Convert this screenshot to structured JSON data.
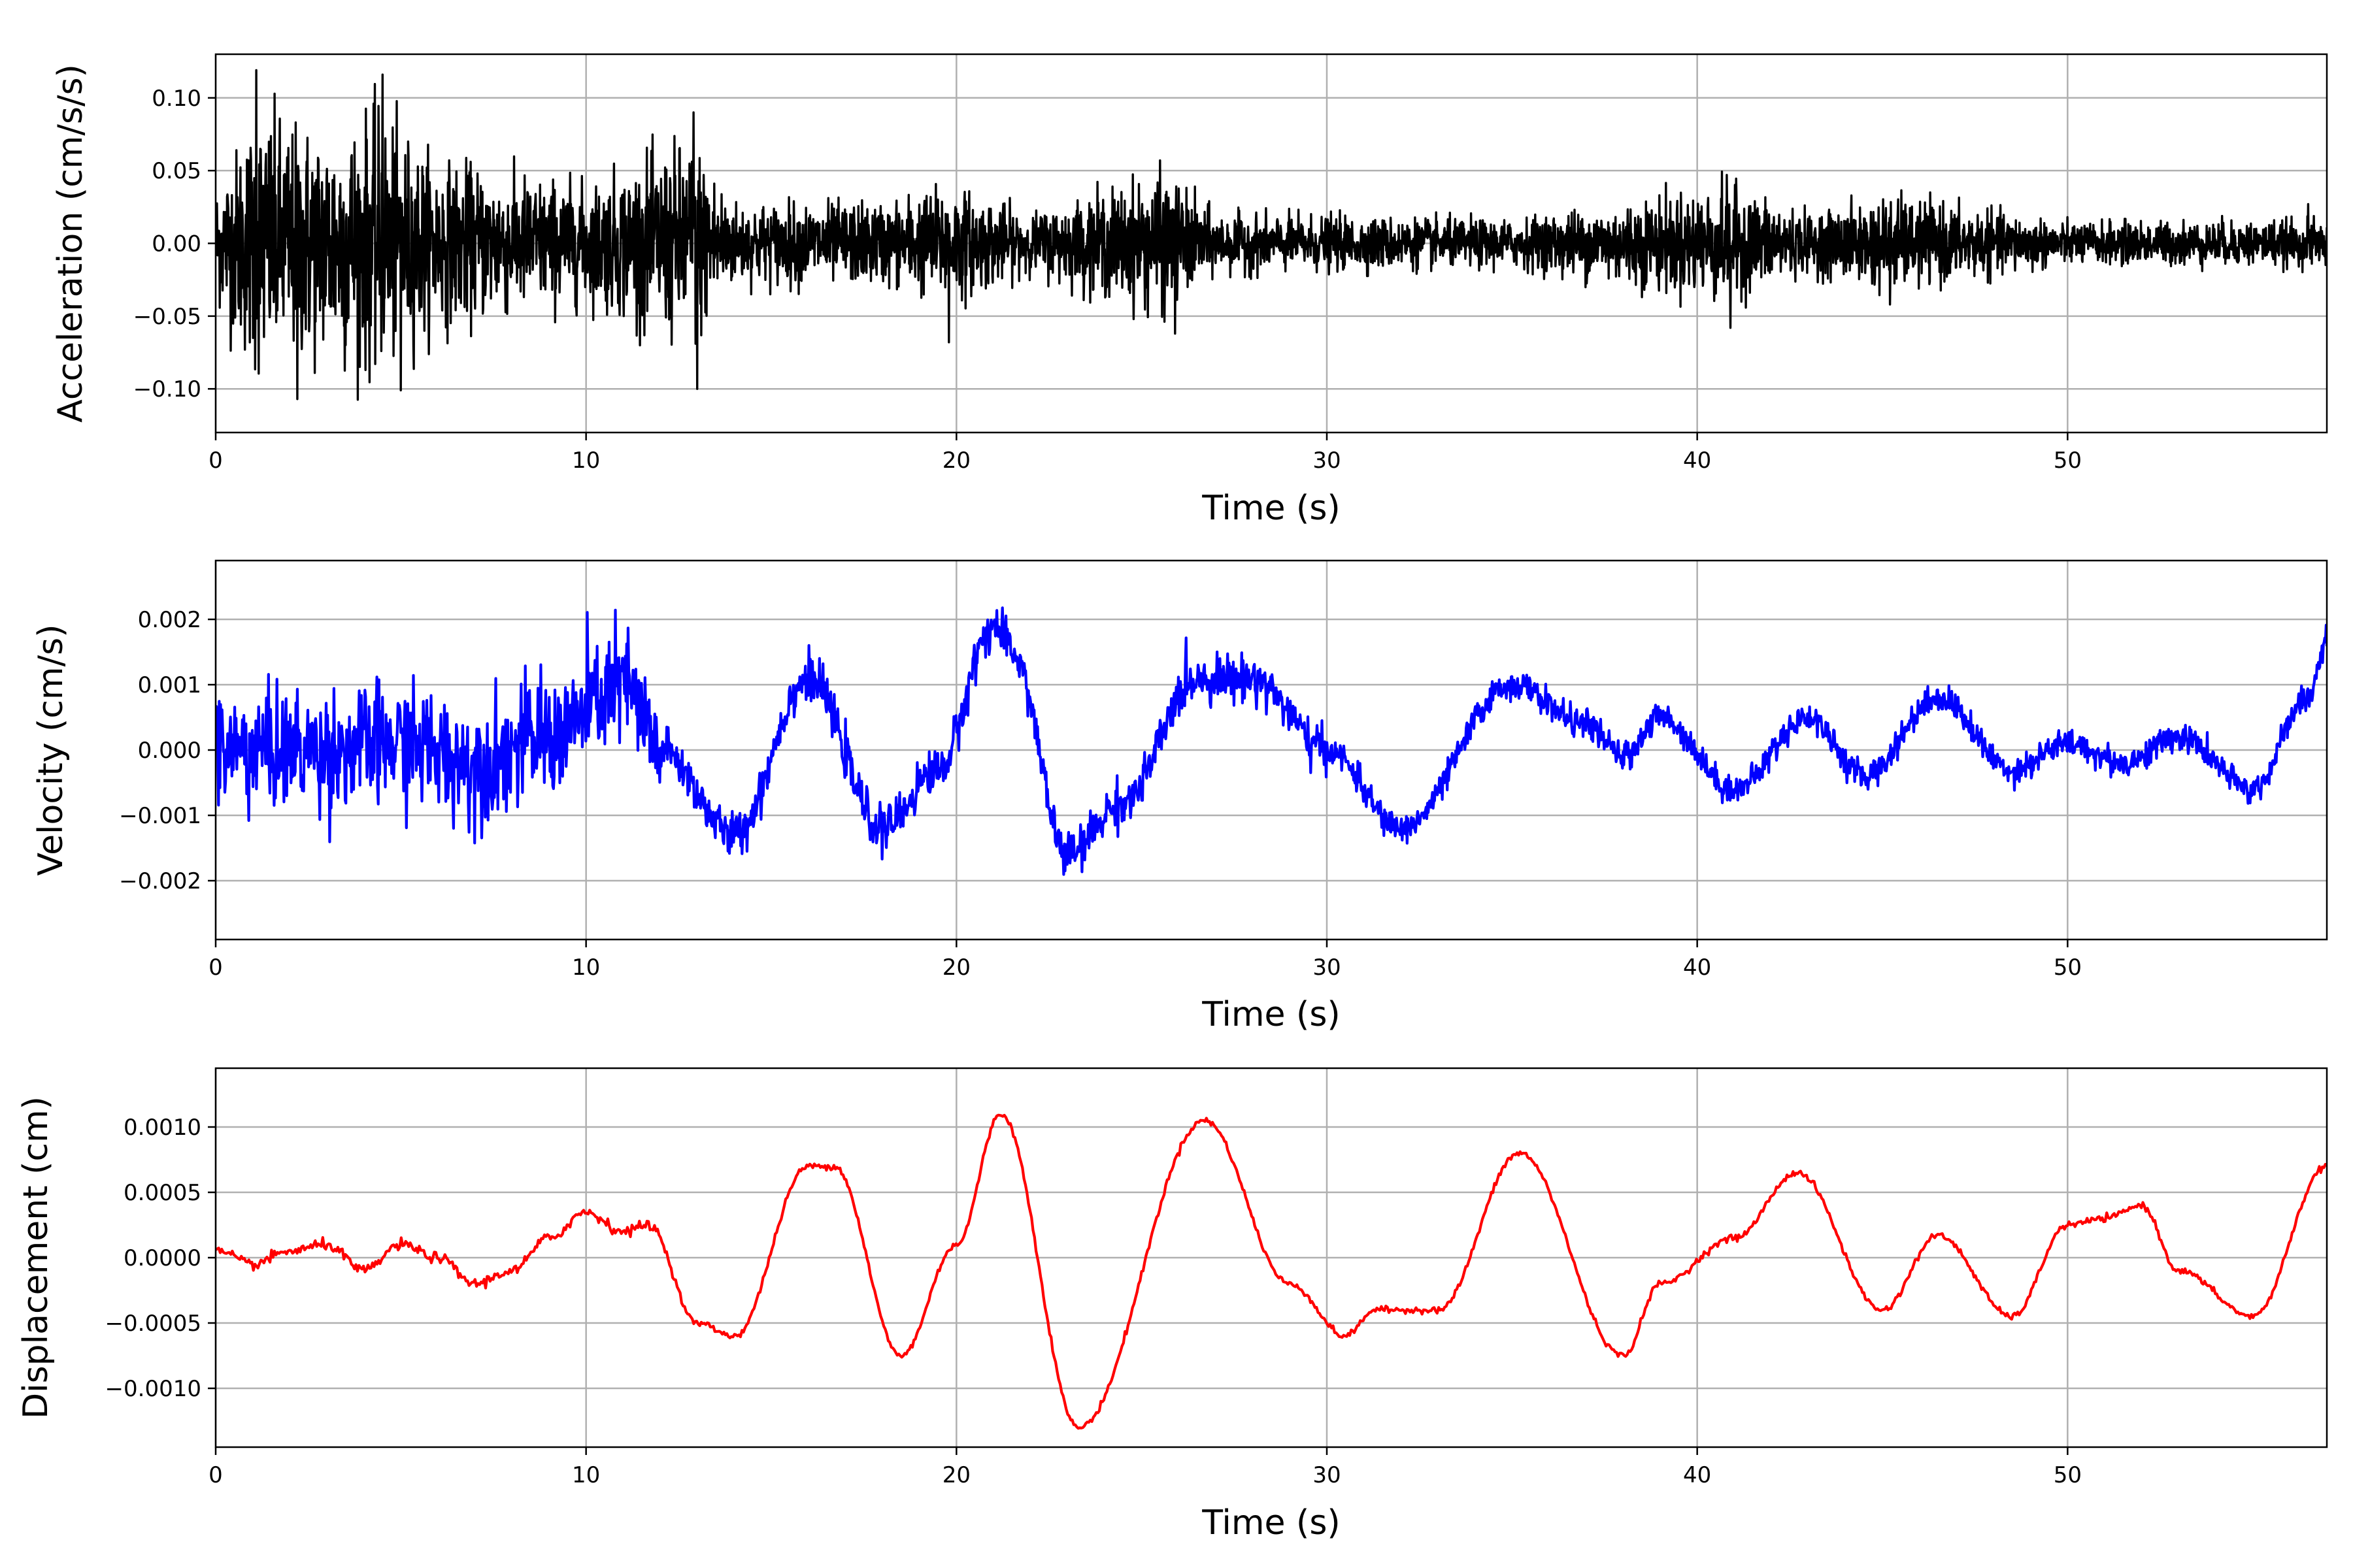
{
  "chart_data": [
    {
      "type": "line",
      "name": "acceleration",
      "xlabel": "Time (s)",
      "ylabel": "Acceleration (cm/s/s)",
      "xlim": [
        0,
        57
      ],
      "ylim": [
        -0.13,
        0.13
      ],
      "xticks": [
        0,
        10,
        20,
        30,
        40,
        50
      ],
      "yticks": [
        -0.1,
        -0.05,
        0.0,
        0.05,
        0.1
      ],
      "ytick_labels": [
        "−0.10",
        "−0.05",
        "0.00",
        "0.05",
        "0.10"
      ],
      "xtick_labels": [
        "0",
        "10",
        "20",
        "30",
        "40",
        "50"
      ],
      "grid": true,
      "color": "#000000",
      "envelope": [
        {
          "t": 0,
          "a": 0.05
        },
        {
          "t": 1.1,
          "a": 0.115
        },
        {
          "t": 2.2,
          "a": 0.1
        },
        {
          "t": 4.4,
          "a": 0.11
        },
        {
          "t": 6,
          "a": 0.07
        },
        {
          "t": 8,
          "a": 0.06
        },
        {
          "t": 10,
          "a": 0.05
        },
        {
          "t": 12.9,
          "a": 0.09
        },
        {
          "t": 14,
          "a": 0.035
        },
        {
          "t": 18,
          "a": 0.035
        },
        {
          "t": 19.8,
          "a": 0.05
        },
        {
          "t": 22,
          "a": 0.025
        },
        {
          "t": 25.6,
          "a": 0.06
        },
        {
          "t": 27,
          "a": 0.025
        },
        {
          "t": 35,
          "a": 0.02
        },
        {
          "t": 40.8,
          "a": 0.05
        },
        {
          "t": 43,
          "a": 0.025
        },
        {
          "t": 45.2,
          "a": 0.04
        },
        {
          "t": 50,
          "a": 0.018
        },
        {
          "t": 57,
          "a": 0.02
        }
      ],
      "values": [
        {
          "x": 1.1,
          "y": 0.119
        },
        {
          "x": 2.2,
          "y": -0.107
        },
        {
          "x": 4.5,
          "y": 0.116
        },
        {
          "x": 5.0,
          "y": -0.101
        },
        {
          "x": 12.9,
          "y": 0.09
        },
        {
          "x": 13.0,
          "y": -0.1
        },
        {
          "x": 19.8,
          "y": -0.068
        },
        {
          "x": 25.5,
          "y": 0.057
        },
        {
          "x": 25.9,
          "y": -0.062
        },
        {
          "x": 40.8,
          "y": 0.047
        },
        {
          "x": 40.9,
          "y": -0.058
        },
        {
          "x": 45.2,
          "y": -0.042
        },
        {
          "x": 56.5,
          "y": 0.027
        }
      ]
    },
    {
      "type": "line",
      "name": "velocity",
      "xlabel": "Time (s)",
      "ylabel": "Velocity (cm/s)",
      "xlim": [
        0,
        57
      ],
      "ylim": [
        -0.0029,
        0.0029
      ],
      "xticks": [
        0,
        10,
        20,
        30,
        40,
        50
      ],
      "yticks": [
        -0.002,
        -0.001,
        0.0,
        0.001,
        0.002
      ],
      "ytick_labels": [
        "−0.002",
        "−0.001",
        "0.000",
        "0.001",
        "0.002"
      ],
      "xtick_labels": [
        "0",
        "10",
        "20",
        "30",
        "40",
        "50"
      ],
      "grid": true,
      "color": "#0000ff",
      "values": [
        {
          "x": 0,
          "y": 0.0
        },
        {
          "x": 1,
          "y": 0.0
        },
        {
          "x": 3,
          "y": 0.0
        },
        {
          "x": 5,
          "y": 0.0001
        },
        {
          "x": 7,
          "y": -0.0002
        },
        {
          "x": 9,
          "y": 0.0002
        },
        {
          "x": 11,
          "y": 0.001
        },
        {
          "x": 12,
          "y": 0.0
        },
        {
          "x": 14,
          "y": -0.0013
        },
        {
          "x": 16,
          "y": 0.0011
        },
        {
          "x": 18,
          "y": -0.0012
        },
        {
          "x": 19.5,
          "y": -0.0003
        },
        {
          "x": 21,
          "y": 0.0019
        },
        {
          "x": 21.5,
          "y": 0.0015
        },
        {
          "x": 23,
          "y": -0.0016
        },
        {
          "x": 24.5,
          "y": -0.0008
        },
        {
          "x": 26.5,
          "y": 0.0011
        },
        {
          "x": 28,
          "y": 0.0011
        },
        {
          "x": 30,
          "y": 0.0
        },
        {
          "x": 32,
          "y": -0.0012
        },
        {
          "x": 35,
          "y": 0.001
        },
        {
          "x": 37,
          "y": 0.0004
        },
        {
          "x": 38,
          "y": -0.0001
        },
        {
          "x": 39,
          "y": 0.0005
        },
        {
          "x": 41,
          "y": -0.0006
        },
        {
          "x": 43,
          "y": 0.0005
        },
        {
          "x": 44.5,
          "y": -0.0004
        },
        {
          "x": 46.5,
          "y": 0.0008
        },
        {
          "x": 48.5,
          "y": -0.0003
        },
        {
          "x": 50,
          "y": 0.0001
        },
        {
          "x": 51.5,
          "y": -0.0002
        },
        {
          "x": 53,
          "y": 0.0002
        },
        {
          "x": 55,
          "y": -0.0006
        },
        {
          "x": 56.5,
          "y": 0.0008
        },
        {
          "x": 57,
          "y": 0.0017
        }
      ]
    },
    {
      "type": "line",
      "name": "displacement",
      "xlabel": "Time (s)",
      "ylabel": "Displacement (cm)",
      "xlim": [
        0,
        57
      ],
      "ylim": [
        -0.00145,
        0.00145
      ],
      "xticks": [
        0,
        10,
        20,
        30,
        40,
        50
      ],
      "yticks": [
        -0.001,
        -0.0005,
        0.0,
        0.0005,
        0.001
      ],
      "ytick_labels": [
        "−0.0010",
        "−0.0005",
        "0.0000",
        "0.0005",
        "0.0010"
      ],
      "xtick_labels": [
        "0",
        "10",
        "20",
        "30",
        "40",
        "50"
      ],
      "grid": true,
      "color": "#ff0000",
      "values": [
        {
          "x": 0,
          "y": 5e-05
        },
        {
          "x": 1,
          "y": -5e-05
        },
        {
          "x": 2,
          "y": 5e-05
        },
        {
          "x": 3,
          "y": 0.0001
        },
        {
          "x": 4,
          "y": -0.0001
        },
        {
          "x": 5,
          "y": 0.0001
        },
        {
          "x": 6,
          "y": 0.0
        },
        {
          "x": 7,
          "y": -0.0002
        },
        {
          "x": 8,
          "y": -0.0001
        },
        {
          "x": 9,
          "y": 0.00015
        },
        {
          "x": 10,
          "y": 0.00035
        },
        {
          "x": 11,
          "y": 0.0002
        },
        {
          "x": 11.7,
          "y": 0.00025
        },
        {
          "x": 13,
          "y": -0.0005
        },
        {
          "x": 14,
          "y": -0.0006
        },
        {
          "x": 16,
          "y": 0.0007
        },
        {
          "x": 16.7,
          "y": 0.0007
        },
        {
          "x": 18.5,
          "y": -0.00075
        },
        {
          "x": 20,
          "y": 0.0001
        },
        {
          "x": 21.2,
          "y": 0.0011
        },
        {
          "x": 23.3,
          "y": -0.0013
        },
        {
          "x": 26.7,
          "y": 0.00105
        },
        {
          "x": 29,
          "y": -0.0002
        },
        {
          "x": 30.5,
          "y": -0.0006
        },
        {
          "x": 31.3,
          "y": -0.0004
        },
        {
          "x": 33,
          "y": -0.0004
        },
        {
          "x": 35.2,
          "y": 0.0008
        },
        {
          "x": 38,
          "y": -0.00075
        },
        {
          "x": 39,
          "y": -0.0002
        },
        {
          "x": 41,
          "y": 0.00015
        },
        {
          "x": 42.7,
          "y": 0.00065
        },
        {
          "x": 45,
          "y": -0.0004
        },
        {
          "x": 46.5,
          "y": 0.00017
        },
        {
          "x": 48.5,
          "y": -0.00045
        },
        {
          "x": 50,
          "y": 0.00025
        },
        {
          "x": 51,
          "y": 0.0003
        },
        {
          "x": 52,
          "y": 0.0004
        },
        {
          "x": 53,
          "y": -0.0001
        },
        {
          "x": 55,
          "y": -0.00045
        },
        {
          "x": 57,
          "y": 0.0007
        }
      ]
    }
  ]
}
